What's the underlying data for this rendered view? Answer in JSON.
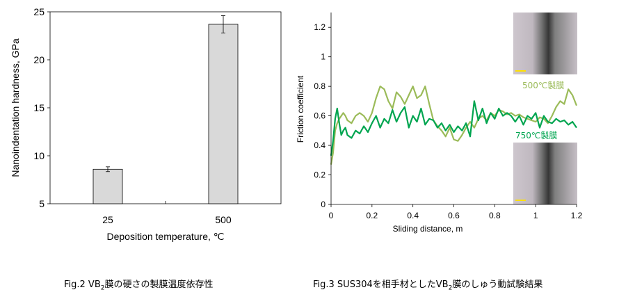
{
  "chart_data": [
    {
      "type": "bar",
      "ylabel": "Nanoindentation hardness, GPa",
      "xlabel": "Deposition temperature, ℃",
      "categories": [
        "25",
        "500"
      ],
      "values": [
        8.6,
        23.7
      ],
      "errors": [
        0.25,
        0.9
      ],
      "ylim": [
        5,
        25
      ],
      "yticks": [
        "5",
        "10",
        "15",
        "20",
        "25"
      ],
      "bar_color": "#d9d9d9",
      "grid": false
    },
    {
      "type": "line",
      "ylabel": "Friction coefficient",
      "xlabel": "Sliding distance, m",
      "xlim": [
        0,
        1.2
      ],
      "ylim": [
        0,
        1.3
      ],
      "xticks": [
        "0",
        "0.2",
        "0.4",
        "0.6",
        "0.8",
        "1",
        "1.2"
      ],
      "yticks": [
        "0",
        "0.2",
        "0.4",
        "0.6",
        "0.8",
        "1",
        "1.2"
      ],
      "grid": false,
      "series": [
        {
          "name": "500℃製膜",
          "color": "#9bbb59",
          "x": [
            0,
            0.01,
            0.02,
            0.03,
            0.04,
            0.05,
            0.06,
            0.07,
            0.08,
            0.1,
            0.12,
            0.14,
            0.16,
            0.18,
            0.2,
            0.22,
            0.24,
            0.26,
            0.28,
            0.3,
            0.32,
            0.34,
            0.36,
            0.38,
            0.4,
            0.42,
            0.44,
            0.46,
            0.48,
            0.5,
            0.52,
            0.54,
            0.56,
            0.58,
            0.6,
            0.62,
            0.64,
            0.66,
            0.68,
            0.7,
            0.72,
            0.74,
            0.76,
            0.78,
            0.8,
            0.82,
            0.84,
            0.86,
            0.88,
            0.9,
            0.92,
            0.94,
            0.96,
            0.98,
            1.0,
            1.02,
            1.04,
            1.06,
            1.08,
            1.1,
            1.12,
            1.14,
            1.16,
            1.18,
            1.2
          ],
          "y": [
            0.27,
            0.35,
            0.5,
            0.55,
            0.58,
            0.6,
            0.62,
            0.6,
            0.57,
            0.55,
            0.6,
            0.62,
            0.6,
            0.56,
            0.62,
            0.72,
            0.8,
            0.78,
            0.7,
            0.65,
            0.76,
            0.73,
            0.68,
            0.74,
            0.8,
            0.72,
            0.74,
            0.8,
            0.68,
            0.57,
            0.53,
            0.5,
            0.46,
            0.52,
            0.44,
            0.43,
            0.47,
            0.52,
            0.56,
            0.52,
            0.58,
            0.6,
            0.57,
            0.62,
            0.6,
            0.64,
            0.63,
            0.61,
            0.62,
            0.6,
            0.61,
            0.59,
            0.58,
            0.57,
            0.56,
            0.59,
            0.58,
            0.55,
            0.6,
            0.66,
            0.7,
            0.68,
            0.78,
            0.74,
            0.67
          ]
        },
        {
          "name": "750℃製膜",
          "color": "#00a550",
          "x": [
            0,
            0.01,
            0.02,
            0.03,
            0.04,
            0.05,
            0.06,
            0.07,
            0.08,
            0.1,
            0.12,
            0.14,
            0.16,
            0.18,
            0.2,
            0.22,
            0.24,
            0.26,
            0.28,
            0.3,
            0.32,
            0.34,
            0.36,
            0.38,
            0.4,
            0.42,
            0.44,
            0.46,
            0.48,
            0.5,
            0.52,
            0.54,
            0.56,
            0.58,
            0.6,
            0.62,
            0.64,
            0.66,
            0.68,
            0.7,
            0.72,
            0.74,
            0.76,
            0.78,
            0.8,
            0.82,
            0.84,
            0.86,
            0.88,
            0.9,
            0.92,
            0.94,
            0.96,
            0.98,
            1.0,
            1.02,
            1.04,
            1.06,
            1.08,
            1.1,
            1.12,
            1.14,
            1.16,
            1.18,
            1.2
          ],
          "y": [
            0.33,
            0.43,
            0.58,
            0.65,
            0.55,
            0.47,
            0.5,
            0.52,
            0.47,
            0.45,
            0.5,
            0.48,
            0.53,
            0.49,
            0.55,
            0.6,
            0.52,
            0.58,
            0.55,
            0.64,
            0.56,
            0.62,
            0.66,
            0.52,
            0.6,
            0.56,
            0.65,
            0.54,
            0.58,
            0.57,
            0.52,
            0.55,
            0.5,
            0.54,
            0.49,
            0.53,
            0.5,
            0.55,
            0.46,
            0.7,
            0.57,
            0.65,
            0.55,
            0.62,
            0.58,
            0.65,
            0.6,
            0.62,
            0.6,
            0.56,
            0.6,
            0.54,
            0.6,
            0.58,
            0.62,
            0.52,
            0.6,
            0.56,
            0.55,
            0.58,
            0.56,
            0.57,
            0.54,
            0.56,
            0.52
          ]
        }
      ],
      "insets": [
        {
          "label": "500℃製膜",
          "color": "#9bbb59"
        },
        {
          "label": "750℃製膜",
          "color": "#00a550"
        }
      ]
    }
  ],
  "captions": {
    "fig2_prefix": "Fig.2 VB",
    "fig2_sub": "2",
    "fig2_suffix": "膜の硬さの製膜温度依存性",
    "fig3_prefix": "Fig.3 SUS304を相手材としたVB",
    "fig3_sub": "2",
    "fig3_suffix": "膜のしゅう動試験結果"
  }
}
